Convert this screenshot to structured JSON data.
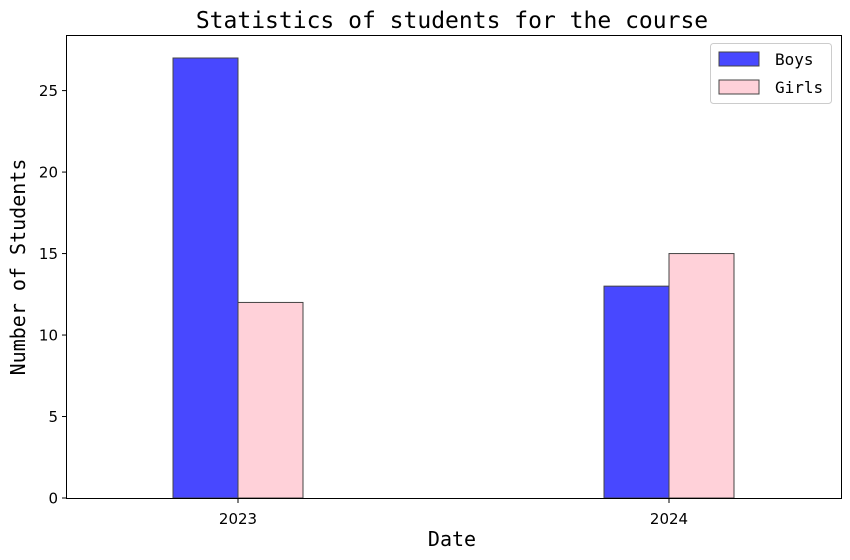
{
  "chart_data": {
    "type": "bar",
    "title": "Statistics of students for the course",
    "xlabel": "Date",
    "ylabel": "Number of Students",
    "categories": [
      "2023",
      "2024"
    ],
    "series": [
      {
        "name": "Boys",
        "values": [
          27,
          13
        ],
        "color": "#4848ff"
      },
      {
        "name": "Girls",
        "values": [
          12,
          15
        ],
        "color": "#ffd1d9"
      }
    ],
    "ylim": [
      0,
      28.35
    ],
    "yticks": [
      0,
      5,
      10,
      15,
      20,
      25
    ],
    "grid": false,
    "legend_position": "top-right",
    "bar_edge_color": "#444444"
  }
}
